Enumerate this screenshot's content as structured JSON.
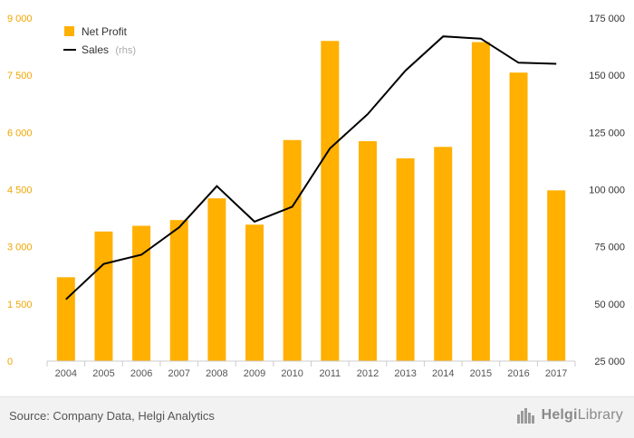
{
  "chart_data": {
    "type": "bar+line",
    "title": "",
    "categories": [
      "2004",
      "2005",
      "2006",
      "2007",
      "2008",
      "2009",
      "2010",
      "2011",
      "2012",
      "2013",
      "2014",
      "2015",
      "2016",
      "2017"
    ],
    "series": [
      {
        "name": "Net Profit",
        "type": "bar",
        "axis": "left",
        "color": "#ffb000",
        "values": [
          2200,
          3400,
          3550,
          3700,
          4270,
          3580,
          5800,
          8400,
          5770,
          5320,
          5620,
          8370,
          7570,
          4480
        ]
      },
      {
        "name": "Sales",
        "axis_note": "(rhs)",
        "type": "line",
        "axis": "right",
        "color": "#000000",
        "values": [
          52000,
          67500,
          71500,
          83500,
          101500,
          86000,
          92500,
          118000,
          133000,
          152000,
          167000,
          166000,
          155500,
          155000
        ]
      }
    ],
    "y_left": {
      "min": 0,
      "max": 9000,
      "ticks": [
        "0",
        "1 500",
        "3 000",
        "4 500",
        "6 000",
        "7 500",
        "9 000"
      ],
      "tick_values": [
        0,
        1500,
        3000,
        4500,
        6000,
        7500,
        9000
      ]
    },
    "y_right": {
      "min": 25000,
      "max": 175000,
      "ticks": [
        "25 000",
        "50 000",
        "75 000",
        "100 000",
        "125 000",
        "150 000",
        "175 000"
      ],
      "tick_values": [
        25000,
        50000,
        75000,
        100000,
        125000,
        150000,
        175000
      ]
    },
    "grid": false,
    "legend": "top-left"
  },
  "footer": {
    "source": "Source: Company Data, Helgi Analytics",
    "brand_prefix": "Helgi",
    "brand_suffix": "Library",
    "brand_icon": "city-skyline-icon"
  }
}
